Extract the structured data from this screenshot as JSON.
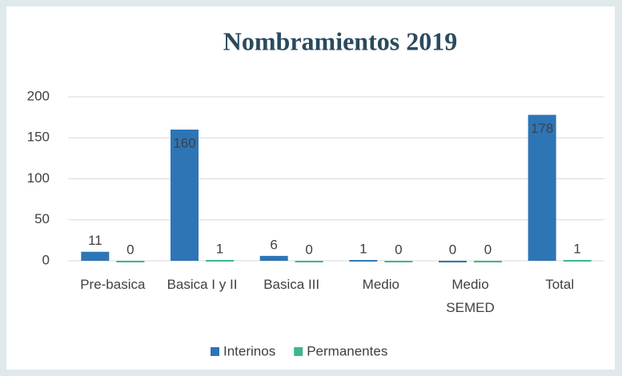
{
  "chart_data": {
    "type": "bar",
    "title": "Nombramientos 2019",
    "categories": [
      "Pre-basica",
      "Basica I y II",
      "Basica III",
      "Medio",
      "Medio\nSEMED",
      "Total"
    ],
    "series": [
      {
        "name": "Interinos",
        "color": "#2e75b6",
        "values": [
          11,
          160,
          6,
          1,
          0,
          178
        ]
      },
      {
        "name": "Permanentes",
        "color": "#3cb88a",
        "values": [
          0,
          1,
          0,
          0,
          0,
          1
        ]
      }
    ],
    "ylim": [
      0,
      200
    ],
    "yticks": [
      0,
      50,
      100,
      150,
      200
    ],
    "grid": true,
    "legend": "bottom"
  }
}
